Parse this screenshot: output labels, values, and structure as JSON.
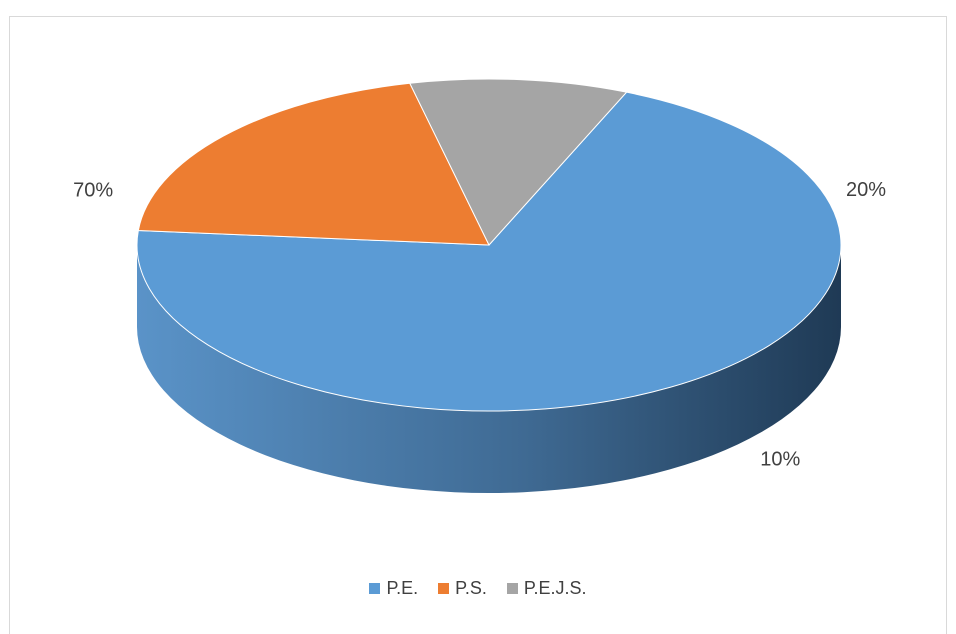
{
  "chart_data": {
    "type": "pie",
    "title": "",
    "categories": [
      "P.E.",
      "P.S.",
      "P.E.J.S."
    ],
    "values": [
      70,
      20,
      10
    ],
    "data_labels": [
      "70%",
      "20%",
      "10%"
    ],
    "colors": [
      "#5b9bd5",
      "#ed7d31",
      "#a5a5a5"
    ],
    "style": "3d-exploded-none",
    "legend_position": "bottom"
  }
}
